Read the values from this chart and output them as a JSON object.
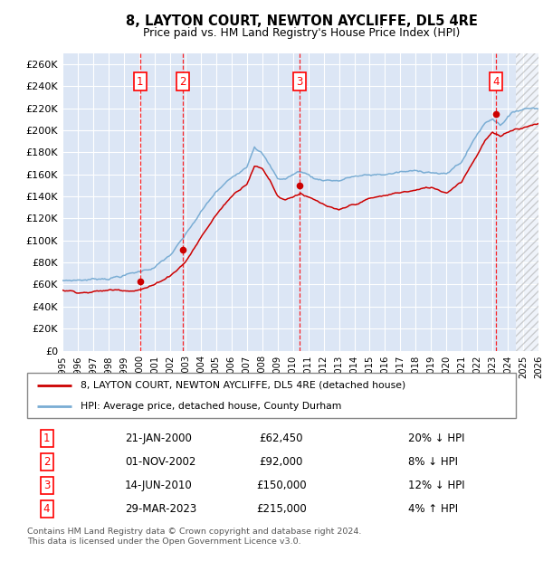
{
  "title": "8, LAYTON COURT, NEWTON AYCLIFFE, DL5 4RE",
  "subtitle": "Price paid vs. HM Land Registry's House Price Index (HPI)",
  "ylim": [
    0,
    270000
  ],
  "yticks": [
    0,
    20000,
    40000,
    60000,
    80000,
    100000,
    120000,
    140000,
    160000,
    180000,
    200000,
    220000,
    240000,
    260000
  ],
  "background_color": "#ffffff",
  "plot_bg_color": "#dce6f5",
  "grid_color": "#ffffff",
  "sale_color": "#cc0000",
  "hpi_color": "#7aadd4",
  "sale_label": "8, LAYTON COURT, NEWTON AYCLIFFE, DL5 4RE (detached house)",
  "hpi_label": "HPI: Average price, detached house, County Durham",
  "transactions": [
    {
      "num": 1,
      "date": "21-JAN-2000",
      "price": 62450,
      "pct": "20%",
      "dir": "↓",
      "year_x": 2000.05
    },
    {
      "num": 2,
      "date": "01-NOV-2002",
      "price": 92000,
      "pct": "8%",
      "dir": "↓",
      "year_x": 2002.83
    },
    {
      "num": 3,
      "date": "14-JUN-2010",
      "price": 150000,
      "pct": "12%",
      "dir": "↓",
      "year_x": 2010.45
    },
    {
      "num": 4,
      "date": "29-MAR-2023",
      "price": 215000,
      "pct": "4%",
      "dir": "↑",
      "year_x": 2023.24
    }
  ],
  "footnote1": "Contains HM Land Registry data © Crown copyright and database right 2024.",
  "footnote2": "This data is licensed under the Open Government Licence v3.0.",
  "xmin": 1995.0,
  "xmax": 2026.0,
  "hatch_start": 2024.5,
  "hpi_anchors": {
    "1995.0": 63000,
    "1996.0": 64000,
    "1997.0": 65000,
    "1998.0": 67000,
    "1999.0": 70000,
    "2000.0": 73000,
    "2001.0": 78000,
    "2002.0": 88000,
    "2003.0": 105000,
    "2004.0": 125000,
    "2005.0": 143000,
    "2006.0": 155000,
    "2007.0": 168000,
    "2007.5": 188000,
    "2008.0": 182000,
    "2008.5": 170000,
    "2009.0": 158000,
    "2009.5": 158000,
    "2010.0": 162000,
    "2010.5": 165000,
    "2011.0": 162000,
    "2011.5": 158000,
    "2012.0": 158000,
    "2013.0": 158000,
    "2014.0": 162000,
    "2015.0": 162000,
    "2016.0": 163000,
    "2017.0": 165000,
    "2018.0": 165000,
    "2019.0": 166000,
    "2020.0": 163000,
    "2021.0": 175000,
    "2022.0": 200000,
    "2022.5": 210000,
    "2023.0": 215000,
    "2023.5": 210000,
    "2024.0": 218000,
    "2024.5": 222000,
    "2025.0": 225000,
    "2025.5": 226000,
    "2026.0": 227000
  },
  "sale_anchors": {
    "1995.0": 55000,
    "1996.0": 54000,
    "1997.0": 55000,
    "1998.0": 56000,
    "1999.0": 57000,
    "2000.0": 59000,
    "2001.0": 63000,
    "2002.0": 72000,
    "2003.0": 85000,
    "2004.0": 107000,
    "2005.0": 128000,
    "2006.0": 145000,
    "2007.0": 158000,
    "2007.5": 175000,
    "2008.0": 172000,
    "2008.5": 162000,
    "2009.0": 148000,
    "2009.5": 145000,
    "2010.0": 148000,
    "2010.5": 152000,
    "2011.0": 148000,
    "2011.5": 144000,
    "2012.0": 140000,
    "2013.0": 133000,
    "2014.0": 138000,
    "2015.0": 143000,
    "2016.0": 145000,
    "2017.0": 148000,
    "2018.0": 150000,
    "2019.0": 152000,
    "2020.0": 148000,
    "2021.0": 160000,
    "2022.0": 185000,
    "2022.5": 198000,
    "2023.0": 205000,
    "2023.5": 200000,
    "2024.0": 205000,
    "2024.5": 208000,
    "2025.0": 210000,
    "2025.5": 212000,
    "2026.0": 215000
  }
}
